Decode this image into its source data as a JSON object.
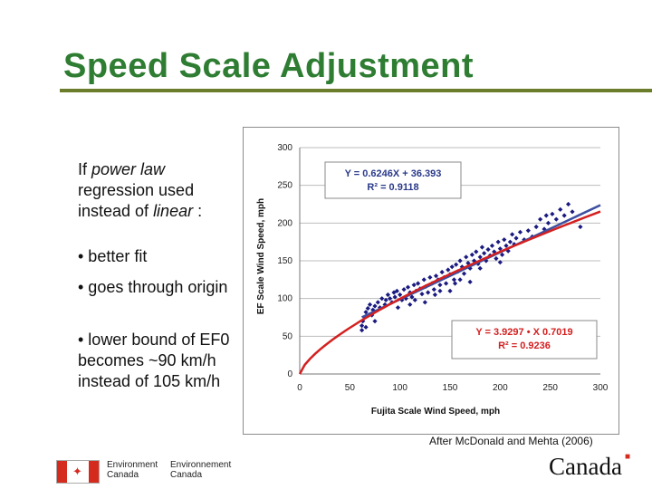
{
  "slide": {
    "title": "Speed Scale Adjustment",
    "intro_prefix": "If ",
    "intro_em1": "power law",
    "intro_mid": " regression used instead of ",
    "intro_em2": "linear",
    "intro_suffix": " :",
    "bullets": [
      "• better fit",
      "• goes through origin",
      "• lower bound of EF0 becomes ~90 km/h instead of 105 km/h"
    ],
    "credit": "After McDonald and Mehta (2006)",
    "logo_en_1": "Environment",
    "logo_en_2": "Canada",
    "logo_fr_1": "Environnement",
    "logo_fr_2": "Canada",
    "wordmark": "Canada",
    "colors": {
      "title": "#2e7d32",
      "rule": "#6b7d2a",
      "points": "#1a1a80",
      "linear": "#3d4fa0",
      "power": "#d42020"
    }
  },
  "chart_data": {
    "type": "scatter",
    "xlabel": "Fujita Scale Wind Speed, mph",
    "ylabel": "EF Scale Wind Speed, mph",
    "xlim": [
      0,
      300
    ],
    "ylim": [
      0,
      300
    ],
    "xticks": [
      0,
      50,
      100,
      150,
      200,
      250,
      300
    ],
    "yticks": [
      0,
      50,
      100,
      150,
      200,
      250,
      300
    ],
    "grid": "horizontal",
    "annotations": [
      {
        "name": "linear",
        "line1": "Y = 0.6246X + 36.393",
        "line2": "R² = 0.9118"
      },
      {
        "name": "power",
        "line1": "Y = 3.9297 • X 0.7019",
        "line2": "R² = 0.9236"
      }
    ],
    "fits": [
      {
        "name": "linear",
        "slope": 0.6246,
        "intercept": 36.393,
        "x_range": [
          0,
          300
        ]
      },
      {
        "name": "power",
        "coef": 3.9297,
        "exponent": 0.7019,
        "x_range": [
          0,
          300
        ]
      }
    ],
    "points": [
      [
        62,
        58
      ],
      [
        62,
        64
      ],
      [
        63,
        70
      ],
      [
        65,
        75
      ],
      [
        66,
        82
      ],
      [
        68,
        87
      ],
      [
        70,
        92
      ],
      [
        72,
        78
      ],
      [
        73,
        85
      ],
      [
        75,
        90
      ],
      [
        78,
        95
      ],
      [
        80,
        88
      ],
      [
        82,
        100
      ],
      [
        85,
        92
      ],
      [
        86,
        98
      ],
      [
        88,
        105
      ],
      [
        90,
        100
      ],
      [
        92,
        95
      ],
      [
        94,
        108
      ],
      [
        95,
        102
      ],
      [
        97,
        110
      ],
      [
        100,
        105
      ],
      [
        102,
        98
      ],
      [
        104,
        112
      ],
      [
        106,
        100
      ],
      [
        108,
        115
      ],
      [
        110,
        108
      ],
      [
        112,
        102
      ],
      [
        114,
        118
      ],
      [
        116,
        110
      ],
      [
        118,
        120
      ],
      [
        120,
        113
      ],
      [
        122,
        106
      ],
      [
        124,
        125
      ],
      [
        126,
        116
      ],
      [
        128,
        108
      ],
      [
        130,
        128
      ],
      [
        132,
        120
      ],
      [
        134,
        112
      ],
      [
        136,
        130
      ],
      [
        138,
        125
      ],
      [
        140,
        118
      ],
      [
        142,
        135
      ],
      [
        144,
        128
      ],
      [
        146,
        120
      ],
      [
        148,
        138
      ],
      [
        150,
        132
      ],
      [
        152,
        142
      ],
      [
        154,
        125
      ],
      [
        156,
        145
      ],
      [
        158,
        136
      ],
      [
        160,
        150
      ],
      [
        162,
        142
      ],
      [
        164,
        133
      ],
      [
        166,
        155
      ],
      [
        168,
        147
      ],
      [
        170,
        140
      ],
      [
        172,
        158
      ],
      [
        174,
        150
      ],
      [
        176,
        162
      ],
      [
        178,
        146
      ],
      [
        180,
        155
      ],
      [
        182,
        168
      ],
      [
        184,
        160
      ],
      [
        186,
        150
      ],
      [
        188,
        165
      ],
      [
        190,
        157
      ],
      [
        192,
        170
      ],
      [
        194,
        162
      ],
      [
        196,
        153
      ],
      [
        198,
        175
      ],
      [
        200,
        166
      ],
      [
        202,
        158
      ],
      [
        204,
        178
      ],
      [
        206,
        170
      ],
      [
        208,
        163
      ],
      [
        210,
        175
      ],
      [
        212,
        185
      ],
      [
        214,
        172
      ],
      [
        216,
        180
      ],
      [
        220,
        188
      ],
      [
        224,
        178
      ],
      [
        228,
        190
      ],
      [
        232,
        182
      ],
      [
        236,
        195
      ],
      [
        240,
        205
      ],
      [
        244,
        192
      ],
      [
        246,
        210
      ],
      [
        248,
        200
      ],
      [
        252,
        212
      ],
      [
        256,
        205
      ],
      [
        260,
        218
      ],
      [
        264,
        210
      ],
      [
        268,
        225
      ],
      [
        272,
        215
      ],
      [
        150,
        110
      ],
      [
        140,
        110
      ],
      [
        125,
        95
      ],
      [
        110,
        92
      ],
      [
        98,
        88
      ],
      [
        180,
        140
      ],
      [
        200,
        148
      ],
      [
        170,
        122
      ],
      [
        75,
        70
      ],
      [
        66,
        62
      ],
      [
        280,
        195
      ],
      [
        160,
        125
      ],
      [
        135,
        105
      ],
      [
        155,
        120
      ],
      [
        115,
        98
      ]
    ]
  }
}
